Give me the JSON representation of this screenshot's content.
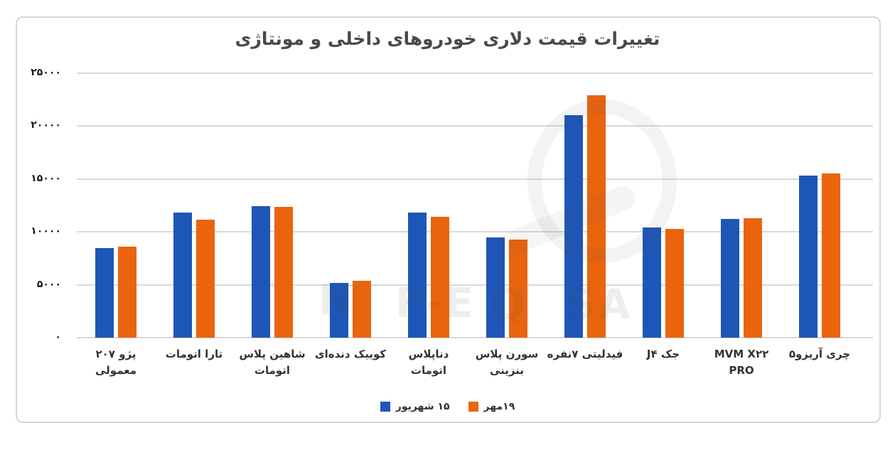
{
  "chart_data": {
    "type": "bar",
    "title": "تغییرات قیمت دلاری خودروهای داخلی و مونتاژی",
    "categories": [
      "پژو ۲۰۷ معمولی",
      "تارا اتومات",
      "شاهین پلاس اتومات",
      "کوییک دنده‌ای",
      "دناپلاس اتومات",
      "سورن پلاس بنزینی",
      "فیدلیتی ۷نفره",
      "جک J۴",
      "MVM X۲۲ PRO",
      "چری آریزو۵"
    ],
    "series": [
      {
        "name": "۱۵ شهریور",
        "color": "#1E56B8",
        "values": [
          8500,
          11800,
          12450,
          5150,
          11800,
          9450,
          21050,
          10450,
          11200,
          15300
        ]
      },
      {
        "name": "۱۹مهر",
        "color": "#EA640E",
        "values": [
          8600,
          11150,
          12400,
          5400,
          11400,
          9250,
          22900,
          10300,
          11300,
          15550
        ]
      }
    ],
    "ylim": [
      0,
      25000
    ],
    "ytick_values_top_down": [
      25000,
      20000,
      15000,
      10000,
      5000,
      0
    ],
    "ytick_labels_top_down": [
      "۲۵۰۰۰",
      "۲۰۰۰۰",
      "۱۵۰۰۰",
      "۱۰۰۰۰",
      "۵۰۰۰",
      "۰"
    ],
    "xlabel": "",
    "ylabel": "",
    "grid": "horizontal",
    "legend_position": "bottom-center",
    "gridline_color": "#D9D9D9",
    "title_color": "#4A4A4A",
    "axis_label_color": "#1C1C1C"
  },
  "watermark": {
    "fragments": [
      "N",
      "F-E",
      "Q",
      "SA"
    ]
  }
}
